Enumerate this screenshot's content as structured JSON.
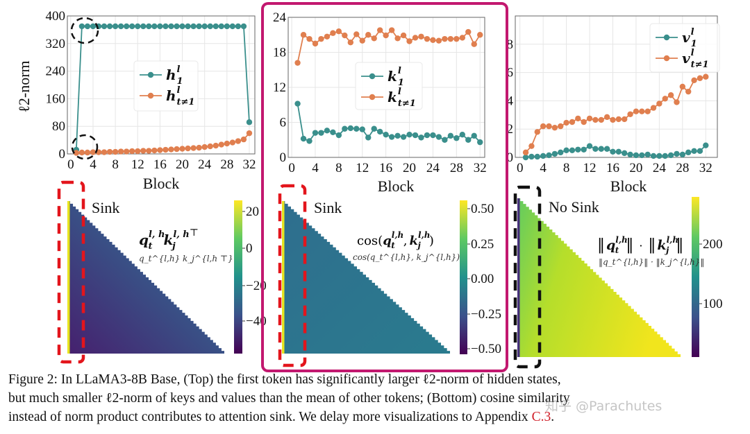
{
  "figure": {
    "caption": {
      "line1": "Figure 2: In LLaMA3-8B Base, (Top) the first token has significantly larger ℓ2-norm of hidden states,",
      "line2": "but much smaller ℓ2-norm of keys and values than the mean of other tokens; (Bottom) cosine similarity",
      "line3_text": "instead of norm product contributes to attention sink. We delay more visualizations to Appendix ",
      "line3_ref": "C.3",
      "line3_end": "."
    },
    "watermark": "知乎 @Parachutes",
    "colors": {
      "teal": "#3a8f8c",
      "orange": "#e07f4f",
      "highlight_box": "#c2186f",
      "red_dash": "#e3151c"
    }
  },
  "chart_data": [
    {
      "type": "line",
      "xlabel": "Block",
      "ylabel": "ℓ2-norm",
      "ylim": [
        0,
        400
      ],
      "xlim": [
        -0.6,
        33
      ],
      "xticks": [
        "0",
        "4",
        "8",
        "12",
        "16",
        "20",
        "24",
        "28",
        "32"
      ],
      "yticks": [
        "0",
        "80",
        "160",
        "240",
        "320",
        "400"
      ],
      "legend_position": "center-right",
      "grid": true,
      "x": [
        1,
        2,
        3,
        4,
        5,
        6,
        7,
        8,
        9,
        10,
        11,
        12,
        13,
        14,
        15,
        16,
        17,
        18,
        19,
        20,
        21,
        22,
        23,
        24,
        25,
        26,
        27,
        28,
        29,
        30,
        31,
        32
      ],
      "series": [
        {
          "name": "h_1^l",
          "label": {
            "base": "h",
            "sup": "l",
            "sub": "1"
          },
          "values": [
            12,
            370,
            370,
            370,
            370,
            370,
            370,
            370,
            370,
            370,
            370,
            370,
            370,
            370,
            370,
            370,
            370,
            370,
            370,
            370,
            370,
            370,
            370,
            370,
            370,
            370,
            370,
            370,
            370,
            370,
            370,
            92
          ]
        },
        {
          "name": "h_{t≠1}^l",
          "label": {
            "base": "h",
            "sup": "l",
            "sub": "t≠1"
          },
          "values": [
            3,
            4,
            4,
            5,
            5,
            5,
            6,
            6,
            7,
            7,
            8,
            8,
            9,
            9,
            10,
            11,
            12,
            13,
            14,
            15,
            16,
            17,
            18,
            20,
            22,
            24,
            27,
            30,
            33,
            37,
            42,
            60
          ]
        }
      ]
    },
    {
      "type": "line",
      "xlabel": "Block",
      "ylabel": "",
      "ylim": [
        0,
        24
      ],
      "xlim": [
        -0.6,
        32.8
      ],
      "xticks": [
        "0",
        "4",
        "8",
        "12",
        "16",
        "20",
        "24",
        "28",
        "32"
      ],
      "yticks": [
        "0",
        "6",
        "12",
        "18",
        "24"
      ],
      "legend_position": "center",
      "grid": true,
      "x": [
        1,
        2,
        3,
        4,
        5,
        6,
        7,
        8,
        9,
        10,
        11,
        12,
        13,
        14,
        15,
        16,
        17,
        18,
        19,
        20,
        21,
        22,
        23,
        24,
        25,
        26,
        27,
        28,
        29,
        30,
        31,
        32
      ],
      "series": [
        {
          "name": "k_1^l",
          "label": {
            "base": "k",
            "sup": "l",
            "sub": "1"
          },
          "values": [
            9.2,
            3.2,
            2.8,
            4.2,
            4.2,
            4.6,
            4.3,
            3.8,
            4.9,
            5.0,
            4.9,
            4.8,
            3.4,
            4.9,
            4.4,
            3.9,
            3.5,
            3.7,
            3.5,
            3.9,
            3.8,
            3.4,
            3.8,
            3.8,
            3.5,
            3.0,
            3.7,
            3.3,
            3.9,
            3.0,
            3.7,
            2.6
          ]
        },
        {
          "name": "k_{t≠1}^l",
          "label": {
            "base": "k",
            "sup": "l",
            "sub": "t≠1"
          },
          "values": [
            16.2,
            21.0,
            20.3,
            19.5,
            20.3,
            20.7,
            21.3,
            21.6,
            20.9,
            19.7,
            21.1,
            20.0,
            21.0,
            20.4,
            21.8,
            20.9,
            21.8,
            20.4,
            20.9,
            19.9,
            20.5,
            20.7,
            20.3,
            20.1,
            20.0,
            20.3,
            20.3,
            20.3,
            20.5,
            21.5,
            19.4,
            21.0
          ]
        }
      ]
    },
    {
      "type": "line",
      "xlabel": "Block",
      "ylabel": "",
      "ylim": [
        0,
        10
      ],
      "xlim": [
        -0.8,
        34
      ],
      "xticks": [
        "0",
        "4",
        "8",
        "12",
        "16",
        "20",
        "24",
        "28",
        "32"
      ],
      "yticks": [
        "0",
        "2",
        "4",
        "6",
        "8"
      ],
      "legend_position": "top-right",
      "grid": true,
      "x": [
        1,
        2,
        3,
        4,
        5,
        6,
        7,
        8,
        9,
        10,
        11,
        12,
        13,
        14,
        15,
        16,
        17,
        18,
        19,
        20,
        21,
        22,
        23,
        24,
        25,
        26,
        27,
        28,
        29,
        30,
        31,
        32
      ],
      "series": [
        {
          "name": "v_1^l",
          "label": {
            "base": "v",
            "sup": "l",
            "sub": "1"
          },
          "values": [
            0.0,
            0.05,
            0.05,
            0.1,
            0.15,
            0.25,
            0.35,
            0.5,
            0.5,
            0.55,
            0.55,
            0.8,
            0.6,
            0.6,
            0.6,
            0.4,
            0.4,
            0.3,
            0.2,
            0.15,
            0.15,
            0.2,
            0.1,
            0.1,
            0.1,
            0.15,
            0.25,
            0.2,
            0.35,
            0.45,
            0.45,
            0.85
          ]
        },
        {
          "name": "v_{t≠1}^l",
          "label": {
            "base": "v",
            "sup": "l",
            "sub": "t≠1"
          },
          "values": [
            0.35,
            0.8,
            1.8,
            2.2,
            2.2,
            2.1,
            2.2,
            2.45,
            2.5,
            2.75,
            2.5,
            2.75,
            2.65,
            2.65,
            2.85,
            2.65,
            2.7,
            2.7,
            3.05,
            3.25,
            3.25,
            3.25,
            3.5,
            3.8,
            4.15,
            4.4,
            3.9,
            5.0,
            4.65,
            5.45,
            5.6,
            5.7
          ]
        }
      ]
    },
    {
      "type": "heatmap",
      "annotation": "Sink",
      "formula": "q_t^{l,h} k_j^{l,h ⊤}",
      "formula_parts": {
        "q": "q",
        "k": "k",
        "sup": "l, h",
        "sub_t": "t",
        "sub_j": "j",
        "transpose": "⊤"
      },
      "colorbar_ticks": [
        "20",
        "0",
        "−20",
        "−40"
      ],
      "colorbar_range": [
        -55,
        25
      ]
    },
    {
      "type": "heatmap",
      "annotation": "Sink",
      "formula": "cos(q_t^{l,h}, k_j^{l,h})",
      "formula_parts": {
        "prefix": "cos(",
        "q": "q",
        "k": "k",
        "sup": "l,h",
        "sub_t": "t",
        "sub_j": "j",
        "suffix": ")",
        "comma": ","
      },
      "colorbar_ticks": [
        "0.50",
        "0.25",
        "0.00",
        "−0.25",
        "−0.50"
      ],
      "colorbar_range": [
        -0.55,
        0.55
      ]
    },
    {
      "type": "heatmap",
      "annotation": "No Sink",
      "formula": "‖q_t^{l,h}‖ · ‖k_j^{l,h}‖",
      "formula_parts": {
        "q": "q",
        "k": "k",
        "sup": "l,h",
        "sub_t": "t",
        "sub_j": "j",
        "dot": "·",
        "bars": "‖"
      },
      "colorbar_ticks": [
        "200",
        "100"
      ],
      "colorbar_range": [
        10,
        270
      ]
    }
  ]
}
